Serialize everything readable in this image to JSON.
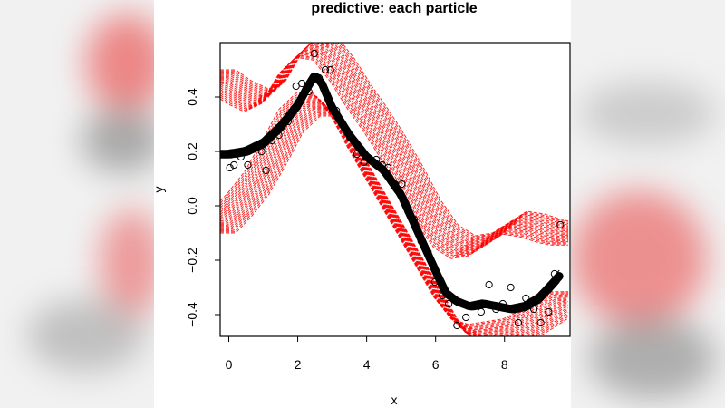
{
  "colors": {
    "background_band": "#f1f1f1",
    "posterior": "#ff0000",
    "mean_curve": "#000000",
    "points": "#000000"
  },
  "chart_data": {
    "type": "line",
    "title": "predictive: each particle",
    "xlabel": "x",
    "ylabel": "y",
    "xlim": [
      -0.25,
      9.9
    ],
    "ylim": [
      -0.48,
      0.6
    ],
    "xticks": [
      0,
      2,
      4,
      6,
      8
    ],
    "xtick_labels": [
      "0",
      "2",
      "4",
      "6",
      "8"
    ],
    "yticks": [
      -0.4,
      -0.2,
      0.0,
      0.2,
      0.4
    ],
    "ytick_labels": [
      "−0.4",
      "−0.2",
      "0.0",
      "0.2",
      "0.4"
    ],
    "grid": false,
    "legend": "none",
    "series": [
      {
        "style": "points",
        "x": [
          0.03,
          0.15,
          0.35,
          0.55,
          0.75,
          0.95,
          1.08,
          1.25,
          1.45,
          1.72,
          1.95,
          2.12,
          2.32,
          2.48,
          2.62,
          2.8,
          2.95,
          3.12,
          3.3,
          3.52,
          3.72,
          3.92,
          4.1,
          4.28,
          4.45,
          4.62,
          4.82,
          5.02,
          5.2,
          5.38,
          5.58,
          5.78,
          5.98,
          6.2,
          6.38,
          6.62,
          6.88,
          7.1,
          7.32,
          7.55,
          7.75,
          7.95,
          8.18,
          8.4,
          8.62,
          8.85,
          9.05,
          9.28,
          9.45,
          9.62
        ],
        "y": [
          0.14,
          0.15,
          0.18,
          0.15,
          0.21,
          0.2,
          0.13,
          0.24,
          0.26,
          0.31,
          0.44,
          0.45,
          0.42,
          0.56,
          0.47,
          0.5,
          0.5,
          0.35,
          0.3,
          0.25,
          0.19,
          0.16,
          0.17,
          0.17,
          0.15,
          0.14,
          0.08,
          0.08,
          -0.02,
          -0.05,
          -0.13,
          -0.17,
          -0.28,
          -0.33,
          -0.36,
          -0.44,
          -0.41,
          -0.37,
          -0.39,
          -0.29,
          -0.38,
          -0.36,
          -0.3,
          -0.43,
          -0.34,
          -0.38,
          -0.43,
          -0.39,
          -0.25,
          -0.07
        ]
      },
      {
        "style": "bold-line",
        "x": [
          -0.15,
          0.0,
          0.5,
          1.0,
          1.5,
          2.0,
          2.3,
          2.5,
          2.7,
          3.0,
          3.5,
          4.0,
          4.5,
          5.0,
          5.5,
          6.0,
          6.3,
          6.6,
          7.0,
          7.4,
          7.8,
          8.2,
          8.6,
          9.0,
          9.3,
          9.65
        ],
        "y": [
          0.19,
          0.19,
          0.2,
          0.23,
          0.29,
          0.37,
          0.44,
          0.48,
          0.45,
          0.36,
          0.26,
          0.18,
          0.13,
          0.04,
          -0.1,
          -0.24,
          -0.32,
          -0.35,
          -0.37,
          -0.36,
          -0.37,
          -0.38,
          -0.37,
          -0.34,
          -0.3,
          -0.25
        ]
      },
      {
        "style": "dashed-band-upper",
        "x": [
          -0.15,
          0.3,
          0.8,
          1.3,
          1.8,
          2.3,
          2.8,
          3.3,
          3.8,
          4.3,
          4.8,
          5.3,
          5.8,
          6.3,
          6.8,
          7.3,
          7.8,
          8.3,
          8.8,
          9.3,
          9.65
        ],
        "y": [
          0.5,
          0.46,
          0.43,
          0.46,
          0.57,
          0.63,
          0.62,
          0.54,
          0.44,
          0.35,
          0.25,
          0.14,
          0.02,
          -0.07,
          -0.11,
          -0.1,
          -0.06,
          -0.02,
          -0.03,
          -0.05,
          -0.06
        ]
      },
      {
        "style": "dashed-band-lower",
        "x": [
          -0.15,
          0.3,
          0.8,
          1.3,
          1.8,
          2.3,
          2.8,
          3.3,
          3.8,
          4.3,
          4.8,
          5.3,
          5.8,
          6.3,
          6.8,
          7.3,
          7.8,
          8.3,
          8.8,
          9.3,
          9.65
        ],
        "y": [
          -0.1,
          -0.04,
          0.04,
          0.15,
          0.27,
          0.33,
          0.33,
          0.25,
          0.13,
          0.02,
          -0.09,
          -0.2,
          -0.31,
          -0.42,
          -0.5,
          -0.52,
          -0.51,
          -0.5,
          -0.47,
          -0.43,
          -0.4
        ]
      }
    ]
  }
}
